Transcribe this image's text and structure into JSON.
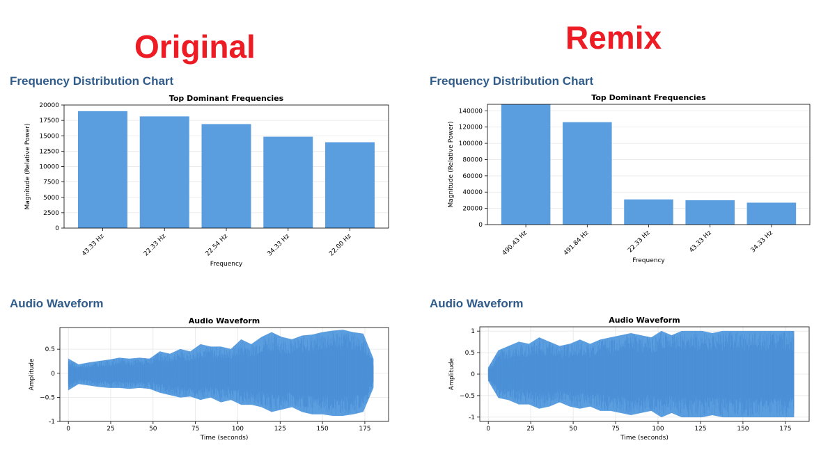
{
  "titles": {
    "original": "Original",
    "remix": "Remix"
  },
  "sections": {
    "original_freq": "Frequency Distribution Chart",
    "remix_freq": "Frequency Distribution Chart",
    "original_wave": "Audio Waveform",
    "remix_wave": "Audio Waveform"
  },
  "colors": {
    "bar": "#5b9ee0",
    "title_red": "#ed1c24",
    "heading_blue": "#2f5b8b"
  },
  "chart_data": [
    {
      "id": "original-frequency",
      "type": "bar",
      "title": "Top Dominant Frequencies",
      "xlabel": "Frequency",
      "ylabel": "Magnitude (Relative Power)",
      "categories": [
        "43.33 Hz",
        "22.33 Hz",
        "22.54 Hz",
        "34.33 Hz",
        "22.00 Hz"
      ],
      "values": [
        19000,
        18150,
        16900,
        14850,
        13950
      ],
      "ylim": [
        0,
        20000
      ],
      "yticks": [
        0,
        2500,
        5000,
        7500,
        10000,
        12500,
        15000,
        17500,
        20000
      ],
      "grid": true
    },
    {
      "id": "remix-frequency",
      "type": "bar",
      "title": "Top Dominant Frequencies",
      "xlabel": "Frequency",
      "ylabel": "Magnitude (Relative Power)",
      "categories": [
        "490.43 Hz",
        "491.84 Hz",
        "22.33 Hz",
        "43.33 Hz",
        "34.33 Hz"
      ],
      "values": [
        148000,
        126000,
        31000,
        30000,
        27000
      ],
      "ylim": [
        0,
        148000
      ],
      "yticks": [
        0,
        20000,
        40000,
        60000,
        80000,
        100000,
        120000,
        140000
      ],
      "grid": true
    },
    {
      "id": "original-waveform",
      "type": "area",
      "title": "Audio Waveform",
      "xlabel": "Time (seconds)",
      "ylabel": "Amplitude",
      "xlim": [
        -5,
        189
      ],
      "ylim": [
        -1.0,
        0.95
      ],
      "xticks": [
        0,
        25,
        50,
        75,
        100,
        125,
        150,
        175
      ],
      "yticks": [
        -1.0,
        -0.5,
        0.0,
        0.5
      ],
      "x": [
        0,
        6,
        12,
        18,
        24,
        30,
        36,
        42,
        48,
        54,
        60,
        66,
        72,
        78,
        84,
        90,
        96,
        102,
        108,
        114,
        120,
        126,
        132,
        138,
        144,
        150,
        156,
        162,
        168,
        174,
        180
      ],
      "upper": [
        0.3,
        0.18,
        0.22,
        0.25,
        0.28,
        0.32,
        0.3,
        0.32,
        0.3,
        0.45,
        0.4,
        0.5,
        0.45,
        0.6,
        0.55,
        0.55,
        0.5,
        0.7,
        0.6,
        0.75,
        0.85,
        0.75,
        0.7,
        0.78,
        0.8,
        0.85,
        0.88,
        0.9,
        0.85,
        0.82,
        0.3
      ],
      "lower": [
        -0.35,
        -0.22,
        -0.25,
        -0.28,
        -0.3,
        -0.3,
        -0.32,
        -0.3,
        -0.32,
        -0.4,
        -0.45,
        -0.5,
        -0.48,
        -0.55,
        -0.5,
        -0.6,
        -0.55,
        -0.65,
        -0.65,
        -0.7,
        -0.8,
        -0.75,
        -0.7,
        -0.8,
        -0.85,
        -0.85,
        -0.88,
        -0.88,
        -0.85,
        -0.8,
        -0.3
      ],
      "grid": true
    },
    {
      "id": "remix-waveform",
      "type": "area",
      "title": "Audio Waveform",
      "xlabel": "Time (seconds)",
      "ylabel": "Amplitude",
      "xlim": [
        -5,
        189
      ],
      "ylim": [
        -1.1,
        1.1
      ],
      "xticks": [
        0,
        25,
        50,
        75,
        100,
        125,
        150,
        175
      ],
      "yticks": [
        -1.0,
        -0.5,
        0.0,
        0.5,
        1.0
      ],
      "x": [
        0,
        6,
        12,
        18,
        24,
        30,
        36,
        42,
        48,
        54,
        60,
        66,
        72,
        78,
        84,
        90,
        96,
        102,
        108,
        114,
        120,
        126,
        132,
        138,
        144,
        150,
        156,
        162,
        168,
        174,
        180
      ],
      "upper": [
        0.15,
        0.55,
        0.65,
        0.75,
        0.7,
        0.85,
        0.75,
        0.65,
        0.7,
        0.8,
        0.7,
        0.8,
        0.85,
        0.9,
        0.95,
        0.9,
        0.85,
        1.0,
        0.9,
        1.0,
        1.0,
        1.0,
        0.95,
        1.0,
        1.0,
        1.0,
        1.0,
        1.0,
        1.0,
        1.0,
        1.0
      ],
      "lower": [
        -0.15,
        -0.55,
        -0.6,
        -0.7,
        -0.7,
        -0.8,
        -0.75,
        -0.65,
        -0.75,
        -0.8,
        -0.75,
        -0.85,
        -0.85,
        -0.9,
        -0.95,
        -0.9,
        -0.85,
        -1.0,
        -0.9,
        -1.0,
        -1.0,
        -1.0,
        -0.95,
        -1.0,
        -1.0,
        -1.0,
        -1.0,
        -1.0,
        -1.0,
        -1.0,
        -1.0
      ],
      "grid": true
    }
  ]
}
